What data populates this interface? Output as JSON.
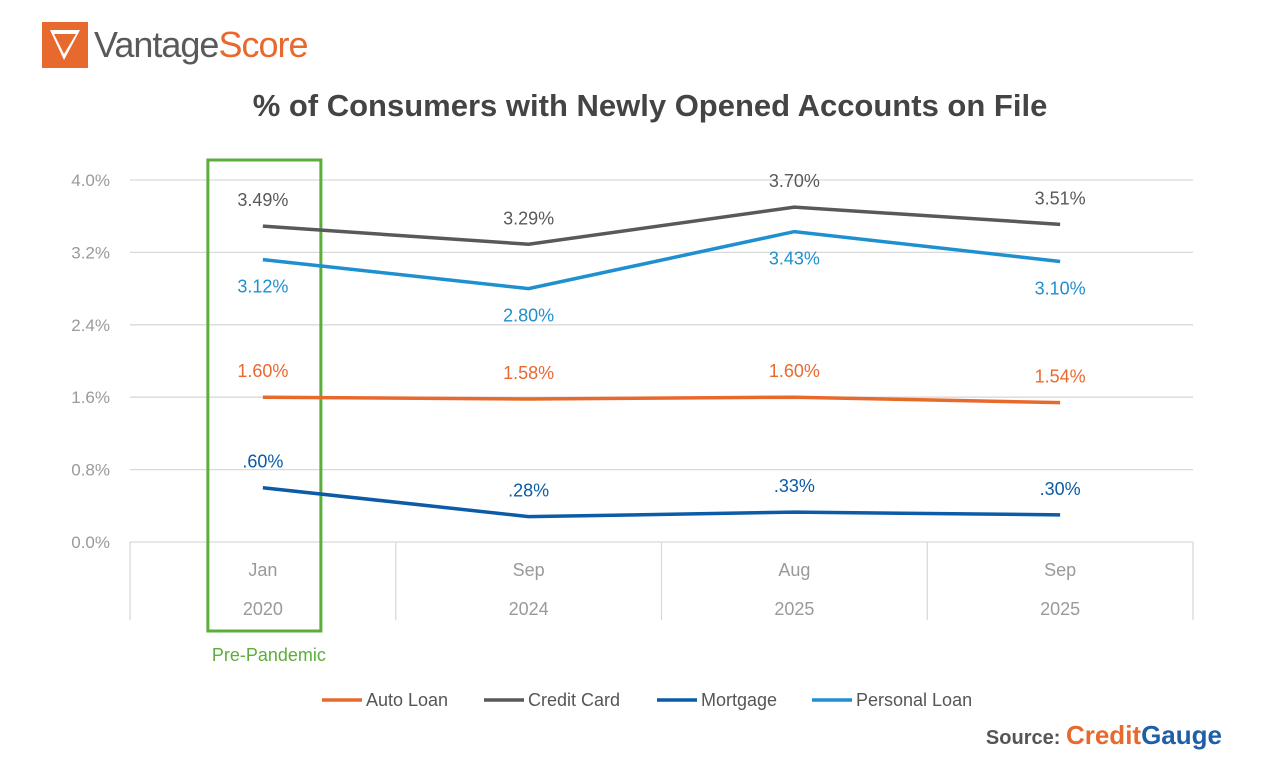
{
  "brand": {
    "logo_part1": "Vantage",
    "logo_part2": "Score"
  },
  "source": {
    "label": "Source:",
    "brand_part1": "Credit",
    "brand_part2": "Gauge"
  },
  "chart_data": {
    "type": "line",
    "title": "% of Consumers with Newly Opened Accounts on File",
    "categories": [
      [
        "Jan",
        "2020"
      ],
      [
        "Sep",
        "2024"
      ],
      [
        "Aug",
        "2025"
      ],
      [
        "Sep",
        "2025"
      ]
    ],
    "ylim": [
      0,
      4.0
    ],
    "yticks": [
      "0.0%",
      "0.8%",
      "1.6%",
      "2.4%",
      "3.2%",
      "4.0%"
    ],
    "ytick_values": [
      0,
      0.8,
      1.6,
      2.4,
      3.2,
      4.0
    ],
    "grid": true,
    "legend_position": "bottom",
    "highlight": {
      "category_index": 0,
      "label": "Pre-Pandemic",
      "color": "#5BAE3A"
    },
    "series": [
      {
        "name": "Auto Loan",
        "color": "#E8692E",
        "values": [
          1.6,
          1.58,
          1.6,
          1.54
        ],
        "labels": [
          "1.60%",
          "1.58%",
          "1.60%",
          "1.54%"
        ],
        "label_pos": "above"
      },
      {
        "name": "Credit Card",
        "color": "#595959",
        "values": [
          3.49,
          3.29,
          3.7,
          3.51
        ],
        "labels": [
          "3.49%",
          "3.29%",
          "3.70%",
          "3.51%"
        ],
        "label_pos": "above"
      },
      {
        "name": "Mortgage",
        "color": "#0B5BA6",
        "values": [
          0.6,
          0.28,
          0.33,
          0.3
        ],
        "labels": [
          ".60%",
          ".28%",
          ".33%",
          ".30%"
        ],
        "label_pos": "above"
      },
      {
        "name": "Personal Loan",
        "color": "#1E90D0",
        "values": [
          3.12,
          2.8,
          3.43,
          3.1
        ],
        "labels": [
          "3.12%",
          "2.80%",
          "3.43%",
          "3.10%"
        ],
        "label_pos": "below"
      }
    ]
  }
}
